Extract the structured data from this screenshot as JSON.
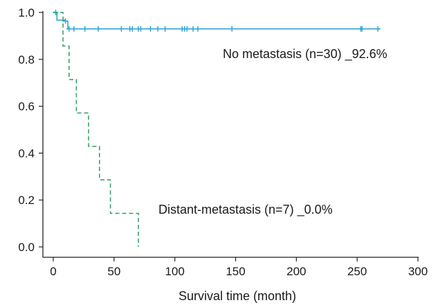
{
  "chart_data": {
    "type": "line",
    "title": "",
    "xlabel": "Survival time (month)",
    "ylabel": "",
    "xlim": [
      0,
      300
    ],
    "ylim": [
      0,
      1.0
    ],
    "xticks": [
      0,
      50,
      100,
      150,
      200,
      250,
      300
    ],
    "yticks": [
      0.0,
      0.2,
      0.4,
      0.6,
      0.8,
      1.0
    ],
    "ytick_labels": [
      "0.0",
      "0.2",
      "0.4",
      "0.6",
      "0.8",
      "1.0"
    ],
    "grid": false,
    "series": [
      {
        "name": "No metastasis (n=30) _92.6%",
        "color": "#2a9fd0",
        "style": "solid",
        "steps": [
          [
            0,
            1.0
          ],
          [
            3,
            0.967
          ],
          [
            10,
            0.963
          ],
          [
            12,
            0.93
          ],
          [
            268,
            0.93
          ]
        ],
        "censored": [
          [
            2,
            1.0
          ],
          [
            10,
            0.963
          ],
          [
            13,
            0.93
          ],
          [
            17,
            0.93
          ],
          [
            26,
            0.93
          ],
          [
            37,
            0.93
          ],
          [
            56,
            0.93
          ],
          [
            63,
            0.93
          ],
          [
            65,
            0.93
          ],
          [
            70,
            0.93
          ],
          [
            72,
            0.93
          ],
          [
            80,
            0.93
          ],
          [
            86,
            0.93
          ],
          [
            92,
            0.93
          ],
          [
            106,
            0.93
          ],
          [
            108,
            0.93
          ],
          [
            110,
            0.93
          ],
          [
            115,
            0.93
          ],
          [
            119,
            0.93
          ],
          [
            147,
            0.93
          ],
          [
            253,
            0.93
          ],
          [
            254,
            0.93
          ],
          [
            267,
            0.93
          ]
        ]
      },
      {
        "name": "Distant-metastasis (n=7) _0.0%",
        "color": "#2aa05a",
        "style": "dashed",
        "steps": [
          [
            0,
            1.0
          ],
          [
            8,
            1.0
          ],
          [
            8,
            0.857
          ],
          [
            13,
            0.857
          ],
          [
            13,
            0.714
          ],
          [
            19,
            0.714
          ],
          [
            19,
            0.571
          ],
          [
            29,
            0.571
          ],
          [
            29,
            0.429
          ],
          [
            38,
            0.429
          ],
          [
            38,
            0.286
          ],
          [
            47,
            0.286
          ],
          [
            47,
            0.143
          ],
          [
            70,
            0.143
          ],
          [
            70,
            0.0
          ]
        ],
        "censored": []
      }
    ],
    "annotations": [
      {
        "text": "No metastasis (n=30) _92.6%",
        "series": 0
      },
      {
        "text": "Distant-metastasis (n=7) _0.0%",
        "series": 1
      }
    ]
  }
}
